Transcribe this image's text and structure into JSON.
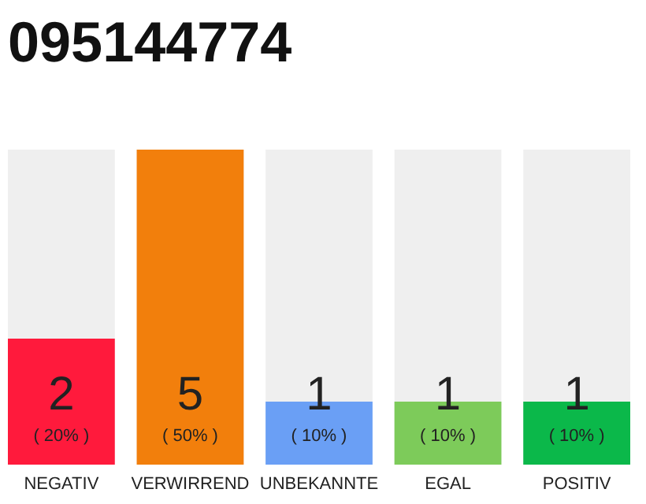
{
  "chart_data": {
    "type": "bar",
    "title": "095144774",
    "categories": [
      "NEGATIV",
      "VERWIRREND",
      "UNBEKANNTE",
      "EGAL",
      "POSITIV"
    ],
    "values": [
      2,
      5,
      1,
      1,
      1
    ],
    "colors": [
      "#ff1a3c",
      "#f27f0c",
      "#6a9ff5",
      "#7dcb5a",
      "#0bb84a"
    ],
    "ylim": [
      0,
      5
    ],
    "tick_labels": "x",
    "data_labels": true,
    "annotations": [
      "( 20% )",
      "( 50% )",
      "( 10% )",
      "( 10% )",
      "( 10% )"
    ]
  }
}
